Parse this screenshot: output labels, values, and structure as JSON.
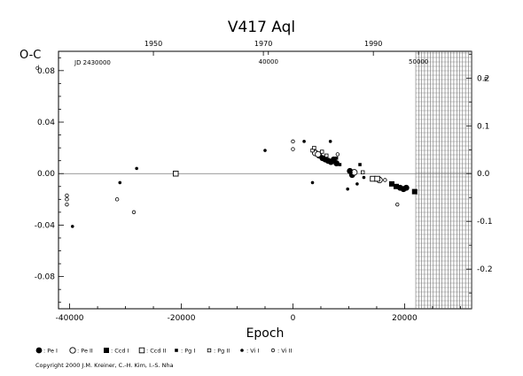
{
  "chart_data": {
    "type": "scatter",
    "title": "V417  Aql",
    "ylabel": "O-C",
    "ylabel_unit": "d",
    "xlabel": "Epoch",
    "right_axis_unit": "P",
    "x_range": [
      -42000,
      32000
    ],
    "y_range": [
      -0.105,
      0.095
    ],
    "x_ticks": [
      -40000,
      -20000,
      0,
      20000
    ],
    "x_tick_labels": [
      "-40000",
      "-20000",
      "0",
      "20000"
    ],
    "y_ticks": [
      -0.08,
      -0.04,
      0.0,
      0.04,
      0.08
    ],
    "y_tick_labels": [
      "-0.08",
      "-0.04",
      "0.00",
      "0.04",
      "0.08"
    ],
    "right_axis": {
      "scale": 0.37095,
      "ticks": [
        -0.2,
        -0.1,
        0.0,
        0.1,
        0.2
      ],
      "tick_labels": [
        "-0.2",
        "-0.1",
        "0.0",
        "0.1",
        "0.2"
      ]
    },
    "top_year_axis": {
      "ticks": [
        {
          "label": "1950",
          "epoch": -25000
        },
        {
          "label": "1970",
          "epoch": -5300
        },
        {
          "label": "1990",
          "epoch": 14400
        }
      ]
    },
    "top_jd_axis": {
      "prefix": "JD 2430000",
      "ticks": [
        {
          "label": "40000",
          "epoch": -4400
        },
        {
          "label": "50000",
          "epoch": 22500
        }
      ]
    },
    "reference_line_y": 0.0,
    "hatched_region_x": [
      22000,
      32000
    ],
    "legend": [
      {
        "symbol": "filled-circle-large",
        "label": ": Pe I"
      },
      {
        "symbol": "open-circle-large",
        "label": ": Pe II"
      },
      {
        "symbol": "filled-square",
        "label": ": Ccd I"
      },
      {
        "symbol": "open-square",
        "label": ": Ccd II"
      },
      {
        "symbol": "filled-square-small",
        "label": ": Pg I"
      },
      {
        "symbol": "open-square-small",
        "label": ": Pg II"
      },
      {
        "symbol": "filled-circle-small",
        "label": ": Vi I"
      },
      {
        "symbol": "open-circle-small",
        "label": ": Vi II"
      }
    ],
    "series": [
      {
        "name": "Pe I",
        "symbol": "filled-circle-large",
        "points": [
          [
            4700,
            0.014
          ],
          [
            5300,
            0.012
          ],
          [
            5800,
            0.011
          ],
          [
            6300,
            0.01
          ],
          [
            6800,
            0.009
          ],
          [
            7300,
            0.011
          ],
          [
            7800,
            0.008
          ],
          [
            10200,
            0.002
          ],
          [
            10600,
            -0.001
          ],
          [
            19200,
            -0.011
          ],
          [
            19800,
            -0.012
          ],
          [
            20300,
            -0.011
          ]
        ]
      },
      {
        "name": "Pe II",
        "symbol": "open-circle-large",
        "points": [
          [
            4000,
            0.016
          ],
          [
            4500,
            0.015
          ],
          [
            11000,
            0.001
          ],
          [
            15500,
            -0.005
          ]
        ]
      },
      {
        "name": "Ccd I",
        "symbol": "filled-square",
        "points": [
          [
            17700,
            -0.008
          ],
          [
            18500,
            -0.01
          ],
          [
            21800,
            -0.014
          ]
        ]
      },
      {
        "name": "Ccd II",
        "symbol": "open-square",
        "points": [
          [
            -21000,
            0.0
          ],
          [
            14300,
            -0.004
          ],
          [
            15100,
            -0.004
          ]
        ]
      },
      {
        "name": "Pg I",
        "symbol": "filled-square-small",
        "points": [
          [
            7800,
            0.012
          ],
          [
            8400,
            0.007
          ],
          [
            12000,
            0.007
          ]
        ]
      },
      {
        "name": "Pg II",
        "symbol": "open-square-small",
        "points": [
          [
            3500,
            0.018
          ],
          [
            3800,
            0.02
          ],
          [
            5200,
            0.017
          ],
          [
            6000,
            0.014
          ],
          [
            12500,
            0.001
          ]
        ]
      },
      {
        "name": "Vi I",
        "symbol": "filled-circle-small",
        "points": [
          [
            -39500,
            -0.041
          ],
          [
            -31000,
            -0.007
          ],
          [
            -28000,
            0.004
          ],
          [
            -5000,
            0.018
          ],
          [
            2000,
            0.025
          ],
          [
            3500,
            -0.007
          ],
          [
            6700,
            0.025
          ],
          [
            9800,
            -0.012
          ],
          [
            10400,
            0.001
          ],
          [
            11500,
            -0.008
          ],
          [
            12700,
            -0.003
          ]
        ]
      },
      {
        "name": "Vi II",
        "symbol": "open-circle-small",
        "points": [
          [
            -40500,
            -0.017
          ],
          [
            -40500,
            -0.02
          ],
          [
            -40500,
            -0.024
          ],
          [
            -31500,
            -0.02
          ],
          [
            -28500,
            -0.03
          ],
          [
            0,
            0.025
          ],
          [
            0,
            0.019
          ],
          [
            8000,
            0.015
          ],
          [
            16500,
            -0.005
          ],
          [
            18700,
            -0.024
          ]
        ]
      }
    ]
  },
  "copyright": "Copyright 2000 J.M. Kreiner, C.-H. Kim, I.-S. Nha"
}
